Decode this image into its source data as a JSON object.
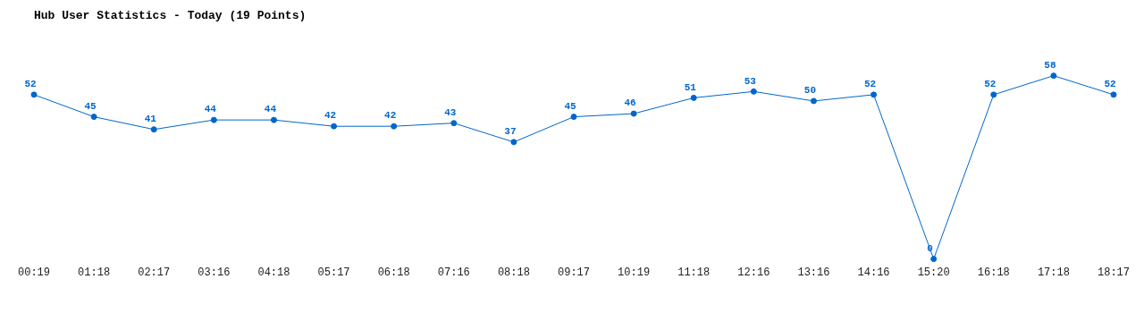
{
  "chart_data": {
    "type": "line",
    "title": "Hub User Statistics - Today (19 Points)",
    "categories": [
      "00:19",
      "01:18",
      "02:17",
      "03:16",
      "04:18",
      "05:17",
      "06:18",
      "07:16",
      "08:18",
      "09:17",
      "10:19",
      "11:18",
      "12:16",
      "13:16",
      "14:16",
      "15:20",
      "16:18",
      "17:18",
      "18:17"
    ],
    "series": [
      {
        "color": "#0066cc",
        "values": [
          52,
          45,
          41,
          44,
          44,
          42,
          42,
          43,
          37,
          45,
          46,
          51,
          53,
          50,
          52,
          0,
          52,
          58,
          52
        ]
      }
    ],
    "data_labels": true,
    "marker": "circle",
    "grid": false,
    "legend": false,
    "tick_labels": "x"
  }
}
